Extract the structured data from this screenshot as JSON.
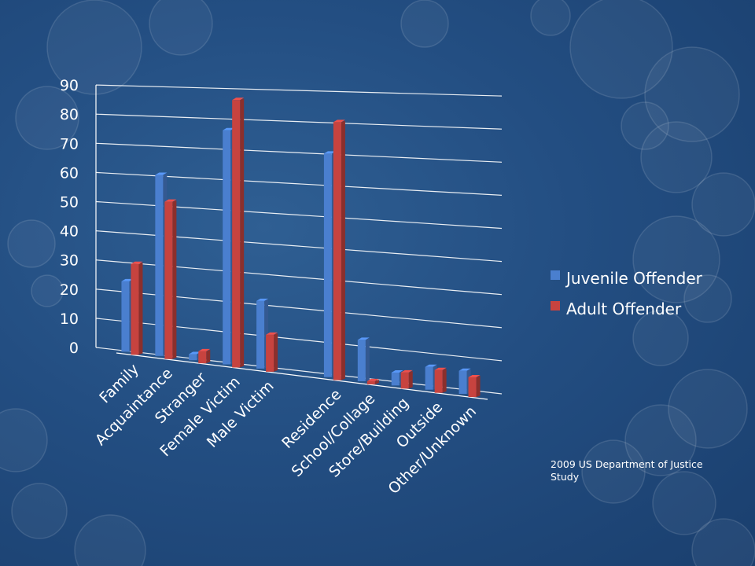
{
  "colors": {
    "juvenile": "#4a7fcf",
    "adult": "#c7433f",
    "grid": "#ffffff",
    "text": "#ffffff"
  },
  "chart_data": {
    "type": "bar",
    "categories": [
      "Family",
      "Acquaintance",
      "Stranger",
      "Female Victim",
      "Male Victim",
      "",
      "Residence",
      "School/Collage",
      "Store/Building",
      "Outside",
      "Other/Unknown"
    ],
    "series": [
      {
        "name": "Juvenile Offender",
        "values": [
          24,
          61,
          2,
          77,
          22,
          null,
          71,
          13,
          4,
          7,
          7
        ]
      },
      {
        "name": "Adult Offender",
        "values": [
          31,
          53,
          4,
          88,
          12,
          null,
          82,
          1,
          5,
          7,
          6
        ]
      }
    ],
    "yticks": [
      0,
      10,
      20,
      30,
      40,
      50,
      60,
      70,
      80,
      90
    ],
    "ylim": [
      0,
      90
    ],
    "grid": true,
    "legend_position": "right"
  },
  "source_note": "2009 US Department of Justice Study"
}
